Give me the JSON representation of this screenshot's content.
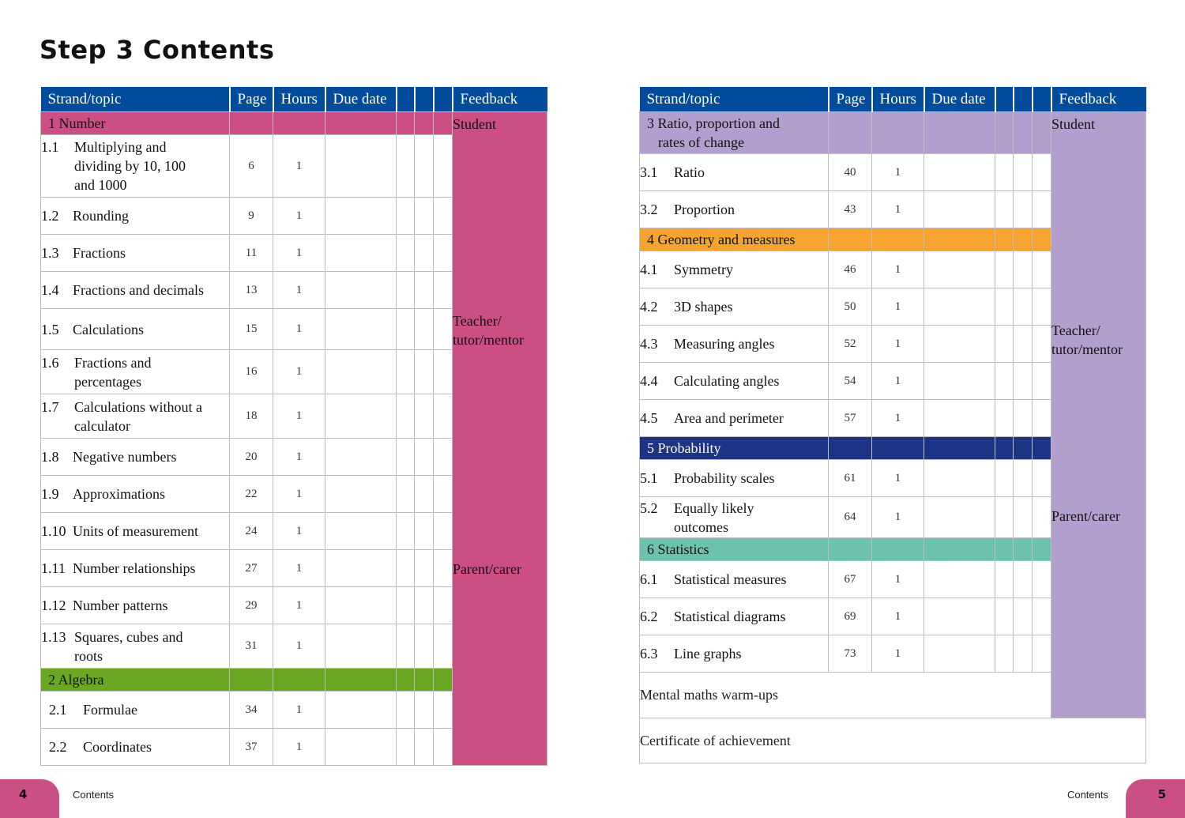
{
  "page_title": "Step 3 Contents",
  "headers": {
    "topic": "Strand/topic",
    "page": "Page",
    "hours": "Hours",
    "due": "Due date",
    "feedback": "Feedback"
  },
  "rag_colors": {
    "red": "#e8000f",
    "amber": "#fbb700",
    "green": "#5dab29"
  },
  "feedback": {
    "student": "Student",
    "teacher_line1": "Teacher/",
    "teacher_line2": "tutor/mentor",
    "parent": "Parent/carer"
  },
  "sections": {
    "number": {
      "title": "1 Number",
      "color": "#cb4f84"
    },
    "algebra": {
      "title": "2 Algebra",
      "color": "#6aa823"
    },
    "ratio": {
      "title_line1": "3 Ratio, proportion and",
      "title_line2": "rates of change",
      "color": "#b39fcd"
    },
    "geometry": {
      "title": "4 Geometry and measures",
      "color": "#f6a430"
    },
    "probability": {
      "title": "5 Probability",
      "color": "#1d3384"
    },
    "statistics": {
      "title": "6 Statistics",
      "color": "#6cc2ad"
    }
  },
  "topics": {
    "t1_1": {
      "num": "1.1",
      "name_1": "Multiplying and",
      "name_2": "dividing by 10, 100",
      "name_3": "and 1000",
      "page": "6",
      "hours": "1"
    },
    "t1_2": {
      "num": "1.2",
      "name": "Rounding",
      "page": "9",
      "hours": "1"
    },
    "t1_3": {
      "num": "1.3",
      "name": "Fractions",
      "page": "11",
      "hours": "1"
    },
    "t1_4": {
      "num": "1.4",
      "name": "Fractions and decimals",
      "page": "13",
      "hours": "1"
    },
    "t1_5": {
      "num": "1.5",
      "name": "Calculations",
      "page": "15",
      "hours": "1"
    },
    "t1_6": {
      "num": "1.6",
      "name_1": "Fractions and",
      "name_2": "percentages",
      "page": "16",
      "hours": "1"
    },
    "t1_7": {
      "num": "1.7",
      "name_1": "Calculations without a",
      "name_2": "calculator",
      "page": "18",
      "hours": "1"
    },
    "t1_8": {
      "num": "1.8",
      "name": "Negative numbers",
      "page": "20",
      "hours": "1"
    },
    "t1_9": {
      "num": "1.9",
      "name": "Approximations",
      "page": "22",
      "hours": "1"
    },
    "t1_10": {
      "num": "1.10",
      "name": "Units of measurement",
      "page": "24",
      "hours": "1"
    },
    "t1_11": {
      "num": "1.11",
      "name": "Number relationships",
      "page": "27",
      "hours": "1"
    },
    "t1_12": {
      "num": "1.12",
      "name": "Number patterns",
      "page": "29",
      "hours": "1"
    },
    "t1_13": {
      "num": "1.13",
      "name_1": "Squares, cubes and",
      "name_2": "roots",
      "page": "31",
      "hours": "1"
    },
    "t2_1": {
      "num": "2.1",
      "name": "Formulae",
      "page": "34",
      "hours": "1"
    },
    "t2_2": {
      "num": "2.2",
      "name": "Coordinates",
      "page": "37",
      "hours": "1"
    },
    "t3_1": {
      "num": "3.1",
      "name": "Ratio",
      "page": "40",
      "hours": "1"
    },
    "t3_2": {
      "num": "3.2",
      "name": "Proportion",
      "page": "43",
      "hours": "1"
    },
    "t4_1": {
      "num": "4.1",
      "name": "Symmetry",
      "page": "46",
      "hours": "1"
    },
    "t4_2": {
      "num": "4.2",
      "name": "3D shapes",
      "page": "50",
      "hours": "1"
    },
    "t4_3": {
      "num": "4.3",
      "name": "Measuring angles",
      "page": "52",
      "hours": "1"
    },
    "t4_4": {
      "num": "4.4",
      "name": "Calculating angles",
      "page": "54",
      "hours": "1"
    },
    "t4_5": {
      "num": "4.5",
      "name": "Area and perimeter",
      "page": "57",
      "hours": "1"
    },
    "t5_1": {
      "num": "5.1",
      "name": "Probability scales",
      "page": "61",
      "hours": "1"
    },
    "t5_2": {
      "num": "5.2",
      "name_1": "Equally likely",
      "name_2": "outcomes",
      "page": "64",
      "hours": "1"
    },
    "t6_1": {
      "num": "6.1",
      "name": "Statistical measures",
      "page": "67",
      "hours": "1"
    },
    "t6_2": {
      "num": "6.2",
      "name": "Statistical diagrams",
      "page": "69",
      "hours": "1"
    },
    "t6_3": {
      "num": "6.3",
      "name": "Line graphs",
      "page": "73",
      "hours": "1"
    }
  },
  "extras": {
    "warmups": "Mental maths warm-ups",
    "certificate": "Certificate of achievement"
  },
  "footer": {
    "left_page": "4",
    "left_label": "Contents",
    "right_label": "Contents",
    "right_page": "5"
  }
}
